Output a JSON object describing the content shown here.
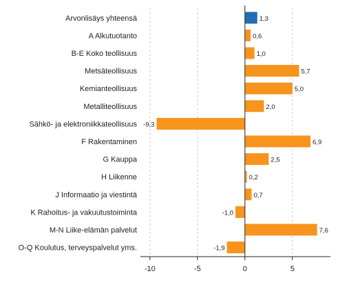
{
  "chart_data": {
    "type": "bar",
    "orientation": "horizontal",
    "categories": [
      "Arvonlisäys yhteensä",
      "A Alkutuotanto",
      "B-E Koko teollisuus",
      "Metsäteollisuus",
      "Kemianteollisuus",
      "Metalliteollisuus",
      "Sähkö- ja elektroniikkateollisuus",
      "F Rakentaminen",
      "G Kauppa",
      "H Liikenne",
      "J Informaatio ja viestintä",
      "K Rahoitus- ja vakuutustoiminta",
      "M-N Liike-elämän palvelut",
      "O-Q Koulutus, terveyspalvelut yms."
    ],
    "values": [
      1.3,
      0.6,
      1.0,
      5.7,
      5.0,
      2.0,
      -9.3,
      6.9,
      2.5,
      0.2,
      0.7,
      -1.0,
      7.6,
      -1.9
    ],
    "value_labels": [
      "1,3",
      "0,6",
      "1,0",
      "5,7",
      "5,0",
      "2,0",
      "-9,3",
      "6,9",
      "2,5",
      "0,2",
      "0,7",
      "-1,0",
      "7,6",
      "-1,9"
    ],
    "highlight_index": 0,
    "colors": {
      "highlight": "#1f6fb4",
      "bar": "#f7941d",
      "grid": "#cccccc",
      "axis": "#222222"
    },
    "xlim": [
      -11,
      9
    ],
    "xticks": [
      -10,
      -5,
      0,
      5
    ],
    "xtick_labels": [
      "-10",
      "-5",
      "0",
      "5"
    ],
    "grid": "vertical dashed",
    "title": "",
    "xlabel": "",
    "ylabel": ""
  }
}
